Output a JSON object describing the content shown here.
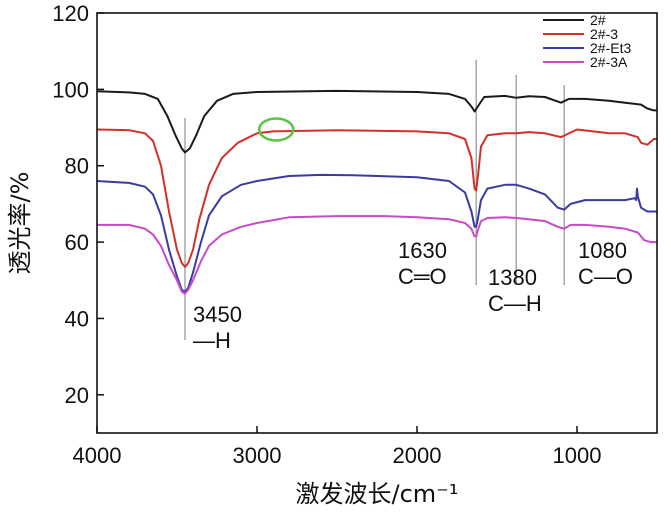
{
  "chart_data": {
    "type": "line",
    "xlabel": "激发波长/cm⁻¹",
    "ylabel": "透光率/%",
    "xlim": [
      4000,
      500
    ],
    "ylim": [
      10,
      120
    ],
    "x_ticks": [
      4000,
      3000,
      2000,
      1000
    ],
    "x_tick_labels": [
      "4000",
      "3000",
      "2000",
      "1000"
    ],
    "y_ticks": [
      20,
      40,
      60,
      80,
      100,
      120
    ],
    "y_tick_labels": [
      "20",
      "40",
      "60",
      "80",
      "100",
      "120"
    ],
    "legend_position": "top-right",
    "series": [
      {
        "name": "2#",
        "color": "#1a1a1a",
        "points": [
          [
            4000,
            99.5
          ],
          [
            3800,
            99.2
          ],
          [
            3700,
            98.8
          ],
          [
            3620,
            97.5
          ],
          [
            3560,
            93
          ],
          [
            3510,
            88
          ],
          [
            3470,
            84.5
          ],
          [
            3450,
            83.5
          ],
          [
            3420,
            84.5
          ],
          [
            3380,
            88
          ],
          [
            3330,
            93
          ],
          [
            3250,
            97
          ],
          [
            3150,
            98.8
          ],
          [
            3000,
            99.3
          ],
          [
            2500,
            99.6
          ],
          [
            2000,
            99.3
          ],
          [
            1800,
            98.8
          ],
          [
            1700,
            97.5
          ],
          [
            1660,
            95.5
          ],
          [
            1640,
            94.2
          ],
          [
            1620,
            95.5
          ],
          [
            1580,
            98
          ],
          [
            1450,
            98.3
          ],
          [
            1380,
            97.8
          ],
          [
            1300,
            98.2
          ],
          [
            1200,
            98
          ],
          [
            1100,
            96.5
          ],
          [
            1050,
            97.5
          ],
          [
            950,
            97.5
          ],
          [
            800,
            97
          ],
          [
            700,
            96.5
          ],
          [
            600,
            96
          ],
          [
            560,
            95
          ],
          [
            520,
            94.5
          ],
          [
            500,
            94.5
          ]
        ]
      },
      {
        "name": "2#-3",
        "color": "#d3302a",
        "points": [
          [
            4000,
            89.5
          ],
          [
            3800,
            89.3
          ],
          [
            3700,
            88.5
          ],
          [
            3650,
            86.5
          ],
          [
            3600,
            80
          ],
          [
            3550,
            68
          ],
          [
            3500,
            58
          ],
          [
            3470,
            54.5
          ],
          [
            3450,
            53.5
          ],
          [
            3430,
            54.5
          ],
          [
            3400,
            58
          ],
          [
            3360,
            66
          ],
          [
            3300,
            75
          ],
          [
            3220,
            82
          ],
          [
            3120,
            86
          ],
          [
            3000,
            88.5
          ],
          [
            2900,
            89
          ],
          [
            2500,
            89.3
          ],
          [
            2000,
            89
          ],
          [
            1800,
            88.5
          ],
          [
            1700,
            87
          ],
          [
            1660,
            82
          ],
          [
            1640,
            74
          ],
          [
            1630,
            73.5
          ],
          [
            1620,
            77
          ],
          [
            1600,
            85
          ],
          [
            1560,
            88
          ],
          [
            1450,
            88.5
          ],
          [
            1380,
            88.5
          ],
          [
            1300,
            88.8
          ],
          [
            1200,
            88.5
          ],
          [
            1100,
            87.5
          ],
          [
            1000,
            89.5
          ],
          [
            900,
            89
          ],
          [
            800,
            88.5
          ],
          [
            700,
            88.5
          ],
          [
            620,
            87.5
          ],
          [
            600,
            86
          ],
          [
            560,
            85.5
          ],
          [
            520,
            87
          ],
          [
            500,
            87
          ]
        ]
      },
      {
        "name": "2#-Et3",
        "color": "#3a3aa3",
        "points": [
          [
            4000,
            76
          ],
          [
            3800,
            75.5
          ],
          [
            3700,
            74.5
          ],
          [
            3650,
            72.5
          ],
          [
            3600,
            67
          ],
          [
            3550,
            58
          ],
          [
            3500,
            51
          ],
          [
            3470,
            47.5
          ],
          [
            3450,
            47
          ],
          [
            3430,
            48
          ],
          [
            3400,
            52
          ],
          [
            3350,
            60
          ],
          [
            3300,
            67
          ],
          [
            3220,
            72
          ],
          [
            3100,
            75
          ],
          [
            3000,
            76
          ],
          [
            2800,
            77.3
          ],
          [
            2600,
            77.6
          ],
          [
            2400,
            77.5
          ],
          [
            2000,
            77
          ],
          [
            1800,
            76
          ],
          [
            1700,
            73
          ],
          [
            1660,
            68
          ],
          [
            1640,
            64
          ],
          [
            1630,
            64
          ],
          [
            1620,
            66
          ],
          [
            1600,
            71
          ],
          [
            1560,
            74
          ],
          [
            1450,
            75
          ],
          [
            1380,
            75
          ],
          [
            1300,
            74
          ],
          [
            1200,
            72.5
          ],
          [
            1120,
            69
          ],
          [
            1080,
            68.5
          ],
          [
            1040,
            70
          ],
          [
            950,
            71
          ],
          [
            800,
            71
          ],
          [
            700,
            71
          ],
          [
            640,
            71.5
          ],
          [
            630,
            71
          ],
          [
            625,
            74
          ],
          [
            620,
            72
          ],
          [
            600,
            69
          ],
          [
            560,
            68
          ],
          [
            500,
            68
          ]
        ]
      },
      {
        "name": "2#-3A",
        "color": "#c94ac7",
        "points": [
          [
            4000,
            64.5
          ],
          [
            3800,
            64.5
          ],
          [
            3700,
            63.5
          ],
          [
            3650,
            62
          ],
          [
            3600,
            59
          ],
          [
            3550,
            54
          ],
          [
            3500,
            50
          ],
          [
            3470,
            47
          ],
          [
            3450,
            46.5
          ],
          [
            3430,
            47.5
          ],
          [
            3400,
            50
          ],
          [
            3350,
            55
          ],
          [
            3300,
            59
          ],
          [
            3220,
            62
          ],
          [
            3100,
            64
          ],
          [
            3000,
            65
          ],
          [
            2800,
            66.5
          ],
          [
            2500,
            66.8
          ],
          [
            2200,
            66.8
          ],
          [
            2000,
            66.5
          ],
          [
            1800,
            66
          ],
          [
            1700,
            65
          ],
          [
            1660,
            63.5
          ],
          [
            1640,
            61.5
          ],
          [
            1630,
            61.5
          ],
          [
            1620,
            63
          ],
          [
            1600,
            65.5
          ],
          [
            1560,
            66.3
          ],
          [
            1450,
            66.5
          ],
          [
            1380,
            66.3
          ],
          [
            1300,
            66
          ],
          [
            1200,
            65.5
          ],
          [
            1120,
            64
          ],
          [
            1080,
            63.5
          ],
          [
            1040,
            64.5
          ],
          [
            950,
            64.5
          ],
          [
            800,
            64
          ],
          [
            700,
            63.5
          ],
          [
            620,
            62.5
          ],
          [
            580,
            60.5
          ],
          [
            540,
            60
          ],
          [
            500,
            60
          ]
        ]
      }
    ],
    "reference_lines": [
      3450,
      1630,
      1380,
      1080
    ],
    "annotations": [
      {
        "lines": [
          "3450",
          "—H"
        ]
      },
      {
        "lines": [
          "1630",
          "C═O"
        ]
      },
      {
        "lines": [
          "1380",
          "C—H"
        ]
      },
      {
        "lines": [
          "1080",
          "C—O"
        ]
      }
    ],
    "highlight_circle": {
      "x": 2880,
      "y": 89.5,
      "color": "#5cc24a"
    }
  }
}
